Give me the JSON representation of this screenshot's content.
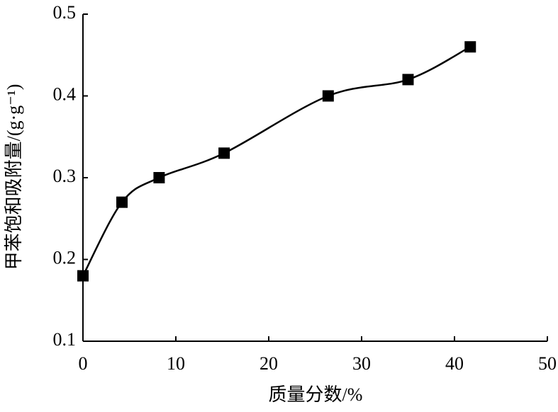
{
  "chart_data": {
    "type": "line",
    "x_label": "质量分数/%",
    "y_label": "甲苯饱和吸附量/(g·g⁻¹)",
    "x": [
      0,
      4.2,
      8.2,
      15.2,
      26.4,
      35,
      41.7
    ],
    "values": [
      0.18,
      0.27,
      0.3,
      0.33,
      0.4,
      0.42,
      0.46
    ],
    "color": "#000000",
    "marker": "square",
    "smooth": true,
    "xlim": [
      0,
      50
    ],
    "xticks": [
      0,
      10,
      20,
      30,
      40,
      50
    ],
    "ylim": [
      0.1,
      0.5
    ],
    "yticks": [
      0.1,
      0.2,
      0.3,
      0.4,
      0.5
    ],
    "grid": false
  }
}
